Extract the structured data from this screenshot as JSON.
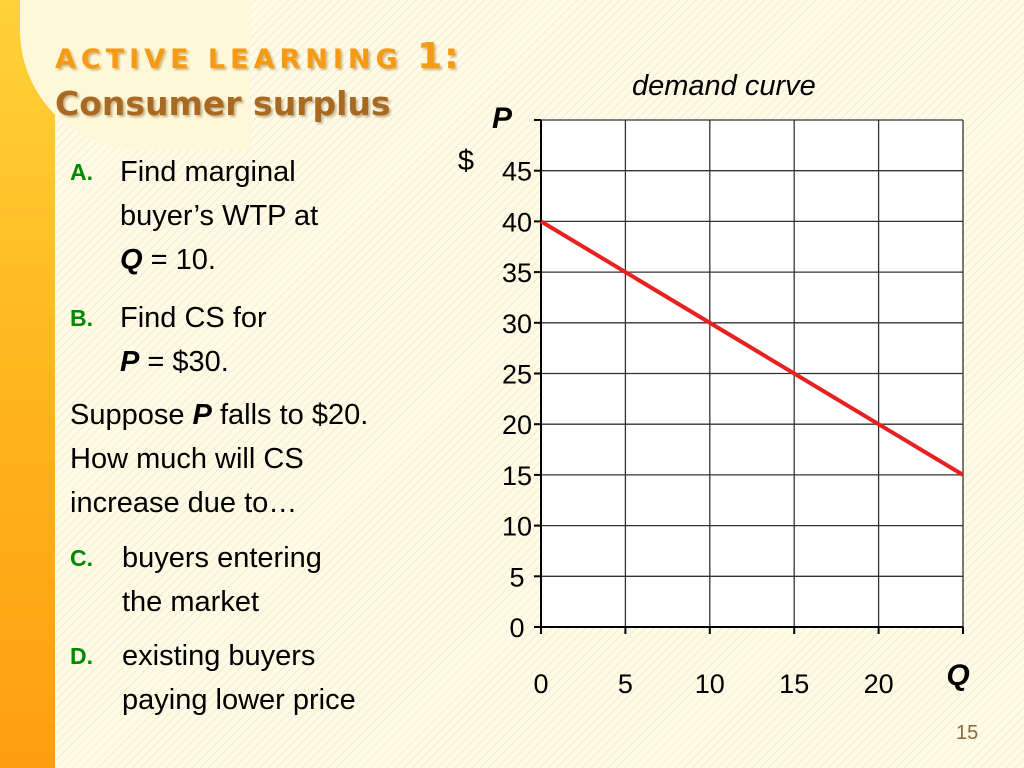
{
  "title": {
    "line1_prefix": "ACTIVE LEARNING",
    "line1_number": "1:",
    "line2": "Consumer surplus"
  },
  "questions": {
    "a": {
      "label": "A.",
      "lines": [
        "Find marginal",
        "buyer’s WTP at"
      ],
      "var": "Q",
      "rest": " = 10."
    },
    "b": {
      "label": "B.",
      "lines": [
        "Find CS for"
      ],
      "var": "P",
      "rest": " = $30."
    },
    "suppose": {
      "pre": "Suppose ",
      "var": "P",
      "post": " falls to $20.",
      "line2": "How much will CS",
      "line3": "increase due to…"
    },
    "c": {
      "label": "C.",
      "lines": [
        "buyers entering",
        "the market"
      ]
    },
    "d": {
      "label": "D.",
      "lines": [
        "existing buyers",
        "paying lower price"
      ]
    }
  },
  "slide_number": "15",
  "colors": {
    "demand_line": "#e82020",
    "accent_green": "#008800",
    "title_orange": "#f59a12",
    "title_brown": "#a86a22"
  },
  "chart_data": {
    "type": "line",
    "title": "demand curve",
    "xlabel": "Q",
    "ylabel": "P",
    "yunit": "$",
    "xlim": [
      0,
      25
    ],
    "ylim": [
      0,
      50
    ],
    "xticks": [
      0,
      5,
      10,
      15,
      20
    ],
    "yticks": [
      0,
      5,
      10,
      15,
      20,
      25,
      30,
      35,
      40,
      45
    ],
    "grid": true,
    "series": [
      {
        "x": [
          0,
          25
        ],
        "y": [
          40,
          15
        ]
      }
    ]
  }
}
